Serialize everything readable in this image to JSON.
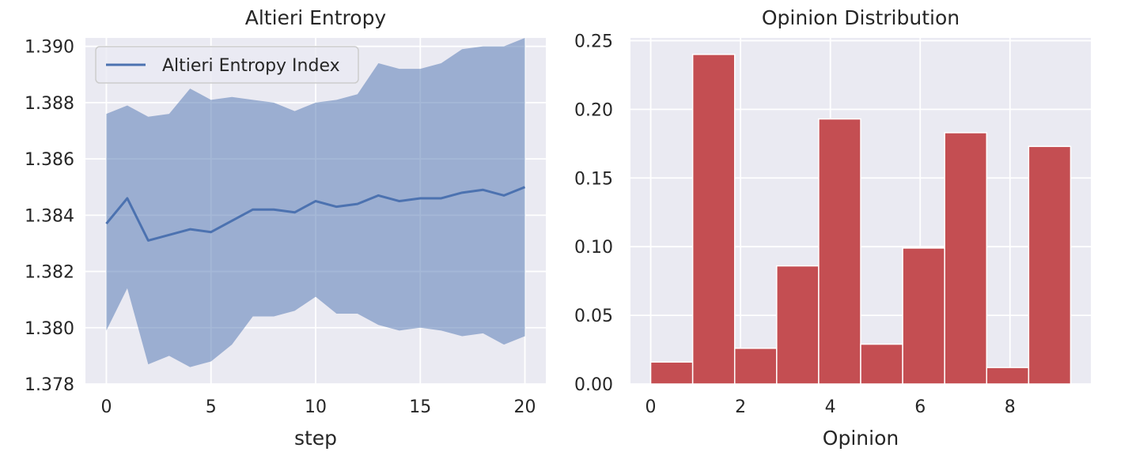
{
  "chart_data": [
    {
      "type": "line",
      "title": "Altieri Entropy",
      "xlabel": "step",
      "ylabel": "",
      "xlim": [
        -1,
        21
      ],
      "ylim": [
        1.378,
        1.3903
      ],
      "xticks": [
        0,
        5,
        10,
        15,
        20
      ],
      "yticks": [
        1.378,
        1.38,
        1.382,
        1.384,
        1.386,
        1.388,
        1.39
      ],
      "yticklabels": [
        "1.378",
        "1.380",
        "1.382",
        "1.384",
        "1.386",
        "1.388",
        "1.390"
      ],
      "grid": true,
      "legend": "top-left",
      "x": [
        0,
        1,
        2,
        3,
        4,
        5,
        6,
        7,
        8,
        9,
        10,
        11,
        12,
        13,
        14,
        15,
        16,
        17,
        18,
        19,
        20
      ],
      "series": [
        {
          "name": "Altieri Entropy Index",
          "color": "#4c72b0",
          "fill_color": "#4c72b0",
          "values": [
            1.3837,
            1.3846,
            1.3831,
            1.3833,
            1.3835,
            1.3834,
            1.3838,
            1.3842,
            1.3842,
            1.3841,
            1.3845,
            1.3843,
            1.3844,
            1.3847,
            1.3845,
            1.3846,
            1.3846,
            1.3848,
            1.3849,
            1.3847,
            1.385
          ],
          "lower": [
            1.3799,
            1.3814,
            1.3787,
            1.379,
            1.3786,
            1.3788,
            1.3794,
            1.3804,
            1.3804,
            1.3806,
            1.3811,
            1.3805,
            1.3805,
            1.3801,
            1.3799,
            1.38,
            1.3799,
            1.3797,
            1.3798,
            1.3794,
            1.3797
          ],
          "upper": [
            1.3876,
            1.3879,
            1.3875,
            1.3876,
            1.3885,
            1.3881,
            1.3882,
            1.3881,
            1.388,
            1.3877,
            1.388,
            1.3881,
            1.3883,
            1.3894,
            1.3892,
            1.3892,
            1.3894,
            1.3899,
            1.39,
            1.39,
            1.3903
          ]
        }
      ]
    },
    {
      "type": "bar",
      "title": "Opinion Distribution",
      "xlabel": "Opinion",
      "ylabel": "",
      "xlim": [
        -0.45,
        9.8
      ],
      "ylim": [
        0,
        0.252
      ],
      "xticks": [
        0,
        2,
        4,
        6,
        8
      ],
      "yticks": [
        0.0,
        0.05,
        0.1,
        0.15,
        0.2,
        0.25
      ],
      "yticklabels": [
        "0.00",
        "0.05",
        "0.10",
        "0.15",
        "0.20",
        "0.25"
      ],
      "grid": true,
      "color": "#c44e52",
      "bin_edges": [
        0,
        0.935,
        1.87,
        2.805,
        3.74,
        4.675,
        5.61,
        6.545,
        7.48,
        8.415,
        9.35
      ],
      "values": [
        0.016,
        0.24,
        0.026,
        0.086,
        0.193,
        0.029,
        0.099,
        0.183,
        0.012,
        0.173
      ]
    }
  ]
}
